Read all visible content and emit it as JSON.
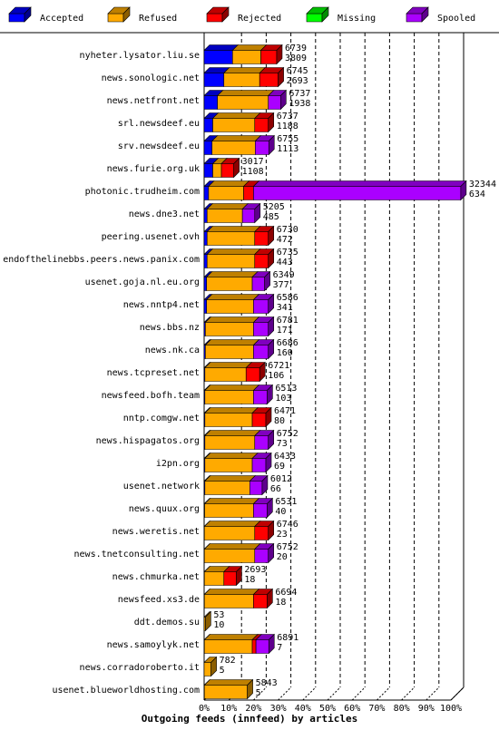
{
  "chart_data": {
    "type": "bar",
    "orientation": "horizontal",
    "stacked": true,
    "title": "",
    "xlabel": "Outgoing feeds (innfeed) by articles",
    "ylabel": "",
    "xlim": [
      0,
      100
    ],
    "x_unit": "%",
    "xticks": [
      "0%",
      "10%",
      "20%",
      "30%",
      "40%",
      "50%",
      "60%",
      "70%",
      "80%",
      "90%",
      "100%"
    ],
    "grid": "vertical-dashed",
    "legend_position": "top",
    "series": [
      {
        "name": "Accepted",
        "color": "#0000ff"
      },
      {
        "name": "Refused",
        "color": "#ffaa00"
      },
      {
        "name": "Rejected",
        "color": "#ff0000"
      },
      {
        "name": "Missing",
        "color": "#00ff00"
      },
      {
        "name": "Spooled",
        "color": "#aa00ff"
      }
    ],
    "categories": [
      {
        "label": "nyheter.lysator.liu.se",
        "total": "6739",
        "second": "3809",
        "segments": [
          11.5,
          11.5,
          6.4,
          0,
          0
        ]
      },
      {
        "label": "news.sonologic.net",
        "total": "6745",
        "second": "2693",
        "segments": [
          8,
          14.5,
          7.5,
          0,
          0
        ]
      },
      {
        "label": "news.netfront.net",
        "total": "6737",
        "second": "1938",
        "segments": [
          5.4,
          20.6,
          0,
          0,
          5
        ]
      },
      {
        "label": "srl.newsdeef.eu",
        "total": "6737",
        "second": "1188",
        "segments": [
          3.5,
          17,
          5.5,
          0,
          0
        ]
      },
      {
        "label": "srv.newsdeef.eu",
        "total": "6755",
        "second": "1113",
        "segments": [
          3.2,
          17.5,
          0,
          0,
          5.5
        ]
      },
      {
        "label": "news.furie.org.uk",
        "total": "3017",
        "second": "1108",
        "segments": [
          3.5,
          3.5,
          5,
          0,
          0
        ]
      },
      {
        "label": "photonic.trudheim.com",
        "total": "32344",
        "second": "634",
        "segments": [
          1.8,
          14.2,
          4,
          0,
          84
        ]
      },
      {
        "label": "news.dne3.net",
        "total": "5205",
        "second": "485",
        "segments": [
          1.2,
          14.3,
          0,
          0,
          5
        ]
      },
      {
        "label": "peering.usenet.ovh",
        "total": "6730",
        "second": "472",
        "segments": [
          1.2,
          19.3,
          5.5,
          0,
          0
        ]
      },
      {
        "label": "endofthelinebbs.peers.news.panix.com",
        "total": "6735",
        "second": "443",
        "segments": [
          1.2,
          19.3,
          5.5,
          0,
          0
        ]
      },
      {
        "label": "usenet.goja.nl.eu.org",
        "total": "6349",
        "second": "377",
        "segments": [
          1,
          18.5,
          0,
          0,
          5
        ]
      },
      {
        "label": "news.nntp4.net",
        "total": "6586",
        "second": "341",
        "segments": [
          1,
          19,
          0,
          0,
          6
        ]
      },
      {
        "label": "news.bbs.nz",
        "total": "6781",
        "second": "171",
        "segments": [
          0.5,
          19.5,
          0,
          0,
          6
        ]
      },
      {
        "label": "news.nk.ca",
        "total": "6686",
        "second": "160",
        "segments": [
          0.5,
          19.5,
          0,
          0,
          6
        ]
      },
      {
        "label": "news.tcpreset.net",
        "total": "6721",
        "second": "106",
        "segments": [
          0.3,
          16.7,
          5.5,
          0,
          0
        ]
      },
      {
        "label": "newsfeed.bofh.team",
        "total": "6513",
        "second": "103",
        "segments": [
          0.3,
          19.7,
          0,
          0,
          5.5
        ]
      },
      {
        "label": "nntp.comgw.net",
        "total": "6471",
        "second": "80",
        "segments": [
          0.3,
          19.2,
          5.5,
          0,
          0
        ]
      },
      {
        "label": "news.hispagatos.org",
        "total": "6752",
        "second": "73",
        "segments": [
          0.3,
          20.2,
          0,
          0,
          5.5
        ]
      },
      {
        "label": "i2pn.org",
        "total": "6433",
        "second": "69",
        "segments": [
          0.3,
          19.2,
          0,
          0,
          5.5
        ]
      },
      {
        "label": "usenet.network",
        "total": "6012",
        "second": "66",
        "segments": [
          0.3,
          18.2,
          0,
          0,
          5
        ]
      },
      {
        "label": "news.quux.org",
        "total": "6531",
        "second": "40",
        "segments": [
          0.2,
          19.8,
          0,
          0,
          5.5
        ]
      },
      {
        "label": "news.weretis.net",
        "total": "6746",
        "second": "23",
        "segments": [
          0.1,
          20.4,
          5.5,
          0,
          0
        ]
      },
      {
        "label": "news.tnetconsulting.net",
        "total": "6752",
        "second": "20",
        "segments": [
          0.1,
          20.4,
          0,
          0,
          5.5
        ]
      },
      {
        "label": "news.chmurka.net",
        "total": "2693",
        "second": "18",
        "segments": [
          0.1,
          7.9,
          5,
          0,
          0
        ]
      },
      {
        "label": "newsfeed.xs3.de",
        "total": "6694",
        "second": "18",
        "segments": [
          0.1,
          19.9,
          5.5,
          0,
          0
        ]
      },
      {
        "label": "ddt.demos.su",
        "total": "53",
        "second": "10",
        "segments": [
          0,
          0.5,
          0,
          0,
          0
        ]
      },
      {
        "label": "news.samoylyk.net",
        "total": "6891",
        "second": "7",
        "segments": [
          0.1,
          19.4,
          1.5,
          0,
          5.2
        ]
      },
      {
        "label": "news.corradoroberto.it",
        "total": "782",
        "second": "5",
        "segments": [
          0,
          2.8,
          0,
          0,
          0
        ]
      },
      {
        "label": "usenet.blueworldhosting.com",
        "total": "5843",
        "second": "5",
        "segments": [
          0.1,
          17.4,
          0,
          0,
          0
        ]
      }
    ]
  }
}
